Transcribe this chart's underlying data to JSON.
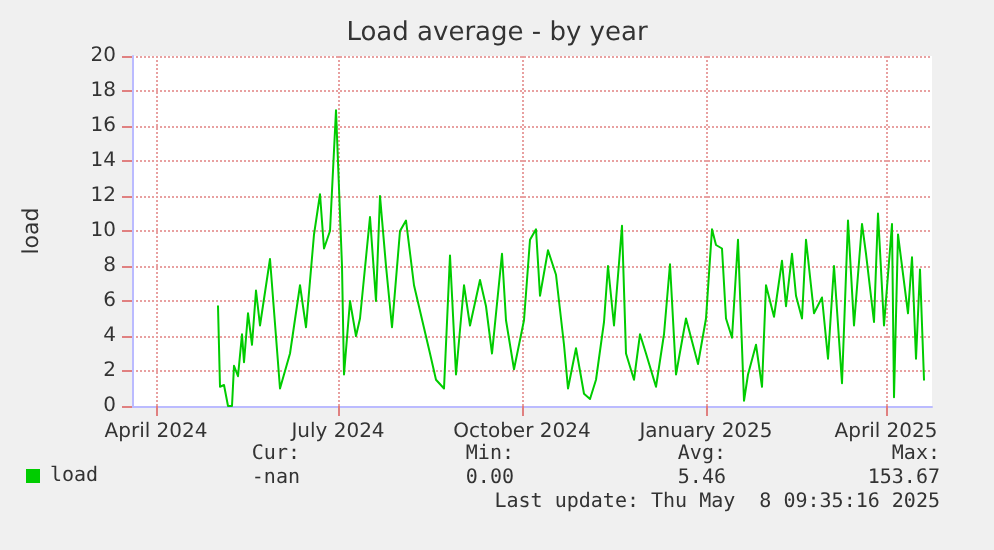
{
  "chart_data": {
    "type": "line",
    "title": "Load average - by year",
    "ylabel": "load",
    "xlim": [
      "2024-03-20",
      "2025-04-24"
    ],
    "xticks": [
      {
        "value": "2024-04-01",
        "label": "April 2024"
      },
      {
        "value": "2024-07-01",
        "label": "July 2024"
      },
      {
        "value": "2024-10-01",
        "label": "October 2024"
      },
      {
        "value": "2025-01-01",
        "label": "January 2025"
      },
      {
        "value": "2025-04-01",
        "label": "April 2025"
      }
    ],
    "ylim": [
      0,
      20
    ],
    "yticks": [
      0,
      2,
      4,
      6,
      8,
      10,
      12,
      14,
      16,
      18,
      20
    ],
    "grid": true,
    "legend": "bottom left",
    "marker": "none",
    "line_style": "solid",
    "x": [
      "2024-05-02",
      "2024-05-03",
      "2024-05-05",
      "2024-05-07",
      "2024-05-09",
      "2024-05-10",
      "2024-05-12",
      "2024-05-14",
      "2024-05-15",
      "2024-05-17",
      "2024-05-19",
      "2024-05-21",
      "2024-05-23",
      "2024-05-28",
      "2024-06-02",
      "2024-06-07",
      "2024-06-12",
      "2024-06-15",
      "2024-06-19",
      "2024-06-22",
      "2024-06-24",
      "2024-06-27",
      "2024-06-30",
      "2024-07-03",
      "2024-07-04",
      "2024-07-07",
      "2024-07-10",
      "2024-07-12",
      "2024-07-17",
      "2024-07-20",
      "2024-07-22",
      "2024-07-25",
      "2024-07-28",
      "2024-08-01",
      "2024-08-04",
      "2024-08-08",
      "2024-08-16",
      "2024-08-19",
      "2024-08-23",
      "2024-08-26",
      "2024-08-29",
      "2024-09-02",
      "2024-09-05",
      "2024-09-10",
      "2024-09-13",
      "2024-09-16",
      "2024-09-21",
      "2024-09-23",
      "2024-09-27",
      "2024-10-02",
      "2024-10-05",
      "2024-10-08",
      "2024-10-10",
      "2024-10-14",
      "2024-10-18",
      "2024-10-22",
      "2024-10-24",
      "2024-10-28",
      "2024-11-01",
      "2024-11-04",
      "2024-11-07",
      "2024-11-11",
      "2024-11-13",
      "2024-11-16",
      "2024-11-20",
      "2024-11-22",
      "2024-11-26",
      "2024-11-29",
      "2024-12-02",
      "2024-12-07",
      "2024-12-11",
      "2024-12-14",
      "2024-12-17",
      "2024-12-22",
      "2024-12-28",
      "2025-01-01",
      "2025-01-04",
      "2025-01-06",
      "2025-01-09",
      "2025-01-11",
      "2025-01-14",
      "2025-01-17",
      "2025-01-20",
      "2025-01-22",
      "2025-01-26",
      "2025-01-29",
      "2025-01-31",
      "2025-02-04",
      "2025-02-08",
      "2025-02-10",
      "2025-02-13",
      "2025-02-15",
      "2025-02-18",
      "2025-02-20",
      "2025-02-24",
      "2025-02-28",
      "2025-03-03",
      "2025-03-06",
      "2025-03-10",
      "2025-03-13",
      "2025-03-16",
      "2025-03-20",
      "2025-03-22",
      "2025-03-26",
      "2025-03-28",
      "2025-03-31",
      "2025-04-04",
      "2025-04-05",
      "2025-04-07",
      "2025-04-12",
      "2025-04-14",
      "2025-04-16",
      "2025-04-18",
      "2025-04-20"
    ],
    "series": [
      {
        "name": "load",
        "color": "#00cc00",
        "values": [
          5.7,
          1.1,
          1.2,
          0,
          0,
          2.3,
          1.7,
          4.1,
          2.5,
          5.3,
          3.5,
          6.6,
          4.6,
          8.4,
          1.0,
          3.0,
          6.9,
          4.5,
          9.8,
          12.1,
          9.0,
          10.0,
          16.9,
          8.0,
          1.8,
          6.0,
          4.0,
          5.0,
          10.8,
          6.0,
          12.0,
          8.0,
          4.5,
          10.0,
          10.6,
          6.9,
          3.0,
          1.5,
          1.0,
          8.6,
          1.8,
          6.9,
          4.6,
          7.2,
          5.7,
          3.0,
          8.7,
          4.9,
          2.1,
          4.9,
          9.5,
          10.1,
          6.3,
          8.9,
          7.5,
          3.5,
          1.0,
          3.3,
          0.7,
          0.4,
          1.5,
          4.8,
          8.0,
          4.6,
          10.3,
          3.0,
          1.5,
          4.1,
          3.0,
          1.1,
          4.1,
          8.1,
          1.8,
          5.0,
          2.4,
          5.0,
          10.1,
          9.2,
          9.0,
          5.0,
          3.9,
          9.5,
          0.3,
          1.8,
          3.5,
          1.1,
          6.9,
          5.1,
          8.3,
          5.7,
          8.7,
          6.3,
          5.0,
          9.5,
          5.3,
          6.2,
          2.7,
          8.0,
          1.3,
          10.6,
          4.6,
          10.4,
          8.7,
          4.8,
          11.0,
          4.6,
          10.4,
          0.5,
          9.8,
          5.3,
          8.5,
          2.7,
          7.8,
          1.5
        ]
      }
    ],
    "annotations": [
      "Cur:",
      "Min:",
      "Avg:",
      "Max:",
      "-nan",
      "0.00",
      "5.46",
      "153.67",
      "Last update: Thu May  8 09:35:16 2025"
    ]
  }
}
